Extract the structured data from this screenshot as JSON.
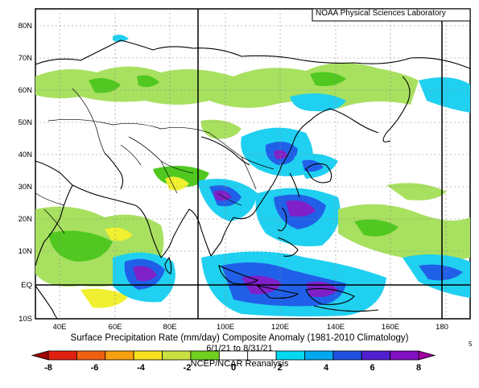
{
  "credit": "NOAA Physical Sciences Laboratory",
  "title": "Surface Precipitation Rate (mm/day) Composite Anomaly (1981-2010 Climatology)",
  "date_range": "6/1/21 to 8/31/21",
  "source": "NCEP/NCAR Reanalysis",
  "edge_mark": "5",
  "lat_labels": [
    "80N",
    "70N",
    "60N",
    "50N",
    "40N",
    "30N",
    "20N",
    "10N",
    "EQ",
    "10S"
  ],
  "lon_labels": [
    "40E",
    "60E",
    "80E",
    "100E",
    "120E",
    "140E",
    "160E",
    "180"
  ],
  "colorbar": {
    "labels": [
      "-8",
      "-6",
      "-4",
      "-2",
      "0",
      "2",
      "4",
      "6",
      "8"
    ],
    "colors": [
      "#a00000",
      "#e02010",
      "#f06010",
      "#f8a010",
      "#f8e020",
      "#c8e040",
      "#70d020",
      "#ffffff",
      "#ffffff",
      "#00d8f0",
      "#00a8f0",
      "#2050e0",
      "#5020d0",
      "#8010c0",
      "#a000a0"
    ]
  },
  "field_colors": {
    "light_green": "#a8e060",
    "green": "#50c820",
    "yellow": "#f0f030",
    "cyan": "#20d0f0",
    "blue": "#2060e8",
    "purple": "#8020c8",
    "violet": "#b040d8"
  }
}
